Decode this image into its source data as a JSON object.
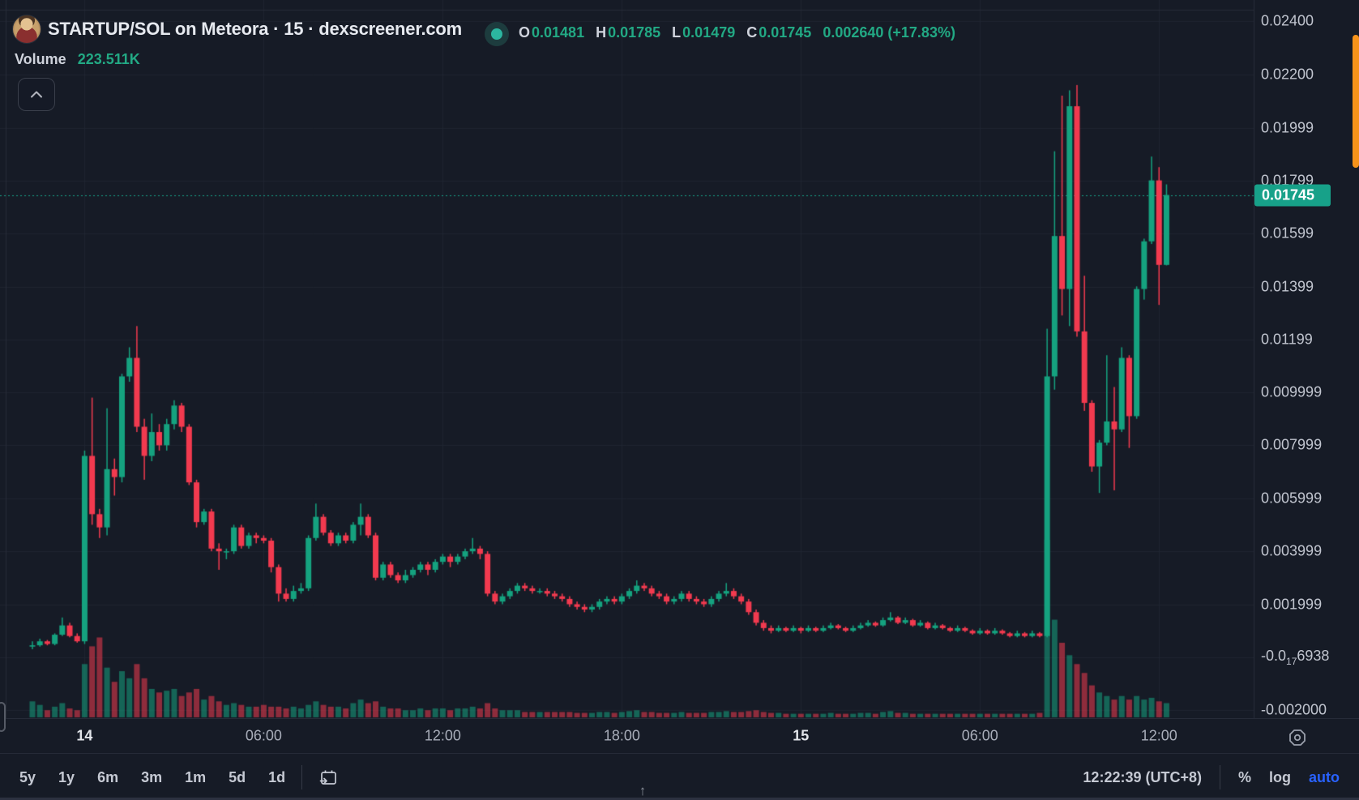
{
  "header": {
    "symbol_title": "STARTUP/SOL on Meteora · 15 · dexscreener.com",
    "ohlc": {
      "o_label": "O",
      "o": "0.01481",
      "h_label": "H",
      "h": "0.01785",
      "l_label": "L",
      "l": "0.01479",
      "c_label": "C",
      "c": "0.01745",
      "change": "0.002640 (+17.83%)"
    },
    "volume_label": "Volume",
    "volume_value": "223.511K"
  },
  "colors": {
    "background": "#161b26",
    "grid": "#1f2430",
    "up": "#15a27f",
    "down": "#f23a4f",
    "accent_teal": "#17a189",
    "axis_text": "#c1c5cf",
    "auto_blue": "#2962ff",
    "scroll_orange": "#f7931a"
  },
  "toolbar": {
    "ranges": [
      "5y",
      "1y",
      "6m",
      "3m",
      "1m",
      "5d",
      "1d"
    ],
    "clock": "12:22:39 (UTC+8)",
    "percent_label": "%",
    "log_label": "log",
    "auto_label": "auto"
  },
  "chart_data": {
    "type": "candlestick+volume",
    "pair": "STARTUP/SOL",
    "interval": "15m",
    "price_unit": 0.0001,
    "ylim": [
      -0.0023,
      0.02481
    ],
    "grid": true,
    "last_price": {
      "text": "0.01745",
      "value": 0.01745
    },
    "price_ticks": [
      {
        "text": "0.02400",
        "value": 0.024
      },
      {
        "text": "0.02200",
        "value": 0.022
      },
      {
        "text": "0.01999",
        "value": 0.01999
      },
      {
        "text": "0.01799",
        "value": 0.01799
      },
      {
        "text": "0.01599",
        "value": 0.01599
      },
      {
        "text": "0.01399",
        "value": 0.01399
      },
      {
        "text": "0.01199",
        "value": 0.01199
      },
      {
        "text": "0.009999",
        "value": 0.009999
      },
      {
        "text": "0.007999",
        "value": 0.007999
      },
      {
        "text": "0.005999",
        "value": 0.005999
      },
      {
        "text": "0.003999",
        "value": 0.003999
      },
      {
        "text": "0.001999",
        "value": 0.001999
      },
      {
        "prefix": "-0.0",
        "sub": "17",
        "suffix": "6938",
        "value": 0
      },
      {
        "text": "-0.002000",
        "value": -0.002
      }
    ],
    "time_ticks": [
      {
        "label": "14",
        "index": 7,
        "major": true
      },
      {
        "label": "06:00",
        "index": 31,
        "major": false
      },
      {
        "label": "12:00",
        "index": 55,
        "major": false
      },
      {
        "label": "18:00",
        "index": 79,
        "major": false
      },
      {
        "label": "15",
        "index": 103,
        "major": true
      },
      {
        "label": "06:00",
        "index": 127,
        "major": false
      },
      {
        "label": "12:00",
        "index": 151,
        "major": false
      }
    ],
    "candles_note": "each row = [open, high, low, close, volume%] in units of price_unit (0.0001)",
    "candles": [
      [
        4,
        6,
        3,
        4.5,
        9
      ],
      [
        4.5,
        7,
        4,
        6,
        7
      ],
      [
        6,
        6.5,
        4.5,
        5,
        4
      ],
      [
        5,
        9,
        4.5,
        8.5,
        6
      ],
      [
        8.5,
        15,
        8,
        12,
        8
      ],
      [
        12,
        13,
        7.5,
        8,
        5
      ],
      [
        8,
        9,
        5.5,
        6,
        4
      ],
      [
        6,
        78,
        5,
        76,
        30
      ],
      [
        76,
        98,
        50,
        54,
        40
      ],
      [
        54,
        56,
        45,
        49,
        45
      ],
      [
        49,
        94,
        46,
        71,
        28
      ],
      [
        71,
        75,
        61,
        68,
        20
      ],
      [
        68,
        107,
        66,
        106,
        26
      ],
      [
        106,
        117,
        104,
        113,
        22
      ],
      [
        113,
        125,
        85,
        87,
        30
      ],
      [
        87,
        90,
        67,
        76,
        22
      ],
      [
        76,
        92,
        74,
        85,
        16
      ],
      [
        85,
        88,
        78,
        80,
        14
      ],
      [
        80,
        90,
        78,
        88,
        15
      ],
      [
        88,
        97,
        86,
        95,
        16
      ],
      [
        95,
        96,
        85,
        87,
        12
      ],
      [
        87,
        88,
        65,
        66,
        14
      ],
      [
        66,
        67,
        49,
        51,
        16
      ],
      [
        51,
        56,
        50,
        55,
        10
      ],
      [
        55,
        56,
        40,
        41,
        12
      ],
      [
        41,
        43,
        33,
        40,
        9
      ],
      [
        40,
        41,
        37,
        40,
        7
      ],
      [
        40,
        50,
        39,
        49,
        8
      ],
      [
        49,
        50,
        41,
        42,
        7
      ],
      [
        42,
        47,
        41,
        46,
        6
      ],
      [
        46,
        47,
        43,
        45,
        6
      ],
      [
        45,
        46,
        43,
        44,
        7
      ],
      [
        44,
        45,
        32,
        34,
        6
      ],
      [
        34,
        35,
        21,
        24,
        6
      ],
      [
        24,
        26,
        21,
        22,
        5
      ],
      [
        22,
        27,
        21,
        25,
        6
      ],
      [
        25,
        28,
        24,
        26,
        5
      ],
      [
        26,
        46,
        25,
        45,
        7
      ],
      [
        45,
        58,
        44,
        53,
        9
      ],
      [
        53,
        54,
        46,
        47,
        7
      ],
      [
        47,
        48,
        42,
        43,
        6
      ],
      [
        43,
        47,
        42,
        46,
        6
      ],
      [
        46,
        47,
        43,
        44,
        5
      ],
      [
        44,
        51,
        43,
        50,
        8
      ],
      [
        50,
        58,
        46,
        53,
        10
      ],
      [
        53,
        54,
        45,
        46,
        8
      ],
      [
        46,
        47,
        29,
        30,
        9
      ],
      [
        30,
        36,
        29,
        35,
        6
      ],
      [
        35,
        36,
        30,
        31,
        5
      ],
      [
        31,
        32,
        28,
        29,
        5
      ],
      [
        29,
        33,
        28,
        31,
        4
      ],
      [
        31,
        34,
        30,
        33,
        4
      ],
      [
        33,
        36,
        32,
        35,
        5
      ],
      [
        35,
        36,
        31,
        33,
        4
      ],
      [
        33,
        37,
        32,
        36,
        5
      ],
      [
        36,
        39,
        35,
        38,
        5
      ],
      [
        38,
        39,
        34,
        36,
        4
      ],
      [
        36,
        39,
        35,
        38,
        5
      ],
      [
        38,
        41,
        37,
        40,
        5
      ],
      [
        40,
        45,
        39,
        41,
        6
      ],
      [
        41,
        42,
        37,
        39,
        5
      ],
      [
        39,
        40,
        23,
        24,
        8
      ],
      [
        24,
        25,
        20,
        21,
        5
      ],
      [
        21,
        24,
        20,
        23,
        4
      ],
      [
        23,
        26,
        22,
        25,
        4
      ],
      [
        25,
        28,
        24,
        27,
        4
      ],
      [
        27,
        28,
        25,
        26,
        3
      ],
      [
        26,
        27,
        24,
        25,
        3
      ],
      [
        25,
        26,
        24,
        25,
        3
      ],
      [
        25,
        26,
        23,
        24,
        3
      ],
      [
        24,
        25,
        22,
        23,
        3
      ],
      [
        23,
        24,
        21,
        22,
        3
      ],
      [
        22,
        23,
        19,
        20,
        3
      ],
      [
        20,
        21,
        18,
        19,
        2.5
      ],
      [
        19,
        20,
        17,
        18,
        2.5
      ],
      [
        18,
        20,
        17,
        19,
        2.5
      ],
      [
        19,
        22,
        18,
        21,
        3
      ],
      [
        21,
        23,
        20,
        22,
        3
      ],
      [
        22,
        23,
        20,
        21,
        2.5
      ],
      [
        21,
        24,
        20,
        23,
        3
      ],
      [
        23,
        26,
        22,
        25,
        3.5
      ],
      [
        25,
        29,
        24,
        27,
        4
      ],
      [
        27,
        28,
        25,
        26,
        3
      ],
      [
        26,
        27,
        23,
        24,
        3
      ],
      [
        24,
        25,
        22,
        23,
        2.5
      ],
      [
        23,
        24,
        20,
        21,
        2.5
      ],
      [
        21,
        23,
        20,
        22,
        2.5
      ],
      [
        22,
        25,
        21,
        24,
        3
      ],
      [
        24,
        25,
        21,
        22,
        2.5
      ],
      [
        22,
        23,
        20,
        21,
        2.5
      ],
      [
        21,
        22,
        19,
        20,
        2.5
      ],
      [
        20,
        23,
        19,
        22,
        3
      ],
      [
        22,
        25,
        21,
        24,
        3
      ],
      [
        24,
        28,
        23,
        25,
        3.5
      ],
      [
        25,
        26,
        22,
        23,
        3
      ],
      [
        23,
        24,
        20,
        21,
        3
      ],
      [
        21,
        22,
        16,
        17,
        3.5
      ],
      [
        17,
        18,
        12,
        13,
        4
      ],
      [
        13,
        14,
        10,
        11,
        3
      ],
      [
        11,
        12,
        9,
        10,
        2.5
      ],
      [
        10,
        12,
        9.5,
        11,
        2.5
      ],
      [
        11,
        11.5,
        9.5,
        10,
        2
      ],
      [
        10,
        12,
        9.5,
        11,
        2
      ],
      [
        11,
        11.5,
        9,
        10,
        2
      ],
      [
        10,
        12,
        9.5,
        11,
        2
      ],
      [
        11,
        11.5,
        9.5,
        10,
        2
      ],
      [
        10,
        12,
        9.5,
        11,
        2
      ],
      [
        11,
        13,
        10.5,
        12,
        2.5
      ],
      [
        12,
        12.5,
        10.5,
        11,
        2
      ],
      [
        11,
        11.5,
        9.5,
        10,
        2
      ],
      [
        10,
        12,
        9.5,
        11,
        2
      ],
      [
        11,
        13,
        10.5,
        12,
        2.5
      ],
      [
        12,
        14,
        11.5,
        13,
        2.5
      ],
      [
        13,
        13.5,
        11.5,
        12,
        2
      ],
      [
        12,
        15,
        11.5,
        14,
        3
      ],
      [
        14,
        17,
        13.5,
        15,
        3.5
      ],
      [
        15,
        15.5,
        12.5,
        13,
        2.5
      ],
      [
        13,
        15,
        12.5,
        14,
        2.5
      ],
      [
        14,
        14.5,
        11.5,
        12,
        2
      ],
      [
        12,
        14,
        11.5,
        13,
        2
      ],
      [
        13,
        13.5,
        10.5,
        11,
        2
      ],
      [
        11,
        13,
        10.5,
        12,
        2
      ],
      [
        12,
        12.5,
        10.5,
        11,
        2
      ],
      [
        11,
        11.5,
        9.5,
        10,
        2
      ],
      [
        10,
        12,
        9.5,
        11,
        2
      ],
      [
        11,
        11.5,
        9.5,
        10,
        2
      ],
      [
        10,
        10.5,
        8.5,
        9,
        2
      ],
      [
        9,
        11,
        8.5,
        10,
        2
      ],
      [
        10,
        10.5,
        8.5,
        9,
        2
      ],
      [
        9,
        11,
        8.5,
        10,
        2
      ],
      [
        10,
        10.5,
        8.5,
        9,
        2
      ],
      [
        9,
        9.5,
        7.5,
        8,
        2
      ],
      [
        8,
        10,
        7.5,
        9,
        2
      ],
      [
        9,
        9.5,
        7.5,
        8,
        2
      ],
      [
        8,
        10,
        7.5,
        9,
        2
      ],
      [
        9,
        9.5,
        7.5,
        8,
        2.5
      ],
      [
        8,
        124,
        7.5,
        106,
        100
      ],
      [
        106,
        191,
        101,
        159,
        55
      ],
      [
        159,
        212,
        129,
        139,
        42
      ],
      [
        139,
        214,
        125,
        208,
        35
      ],
      [
        208,
        216,
        121,
        123,
        30
      ],
      [
        123,
        144,
        93,
        96,
        25
      ],
      [
        96,
        97,
        70,
        72,
        18
      ],
      [
        72,
        82,
        62,
        81,
        14
      ],
      [
        81,
        114,
        80,
        89,
        12
      ],
      [
        89,
        102,
        63,
        86,
        10
      ],
      [
        86,
        117,
        85,
        113,
        12
      ],
      [
        113,
        114,
        79,
        91,
        10
      ],
      [
        91,
        140,
        90,
        139,
        12
      ],
      [
        139,
        158,
        135,
        157,
        10
      ],
      [
        157,
        189,
        156,
        180,
        11
      ],
      [
        180,
        185,
        133,
        148.1,
        9
      ],
      [
        148.1,
        178.5,
        147.9,
        174.5,
        8
      ]
    ]
  }
}
